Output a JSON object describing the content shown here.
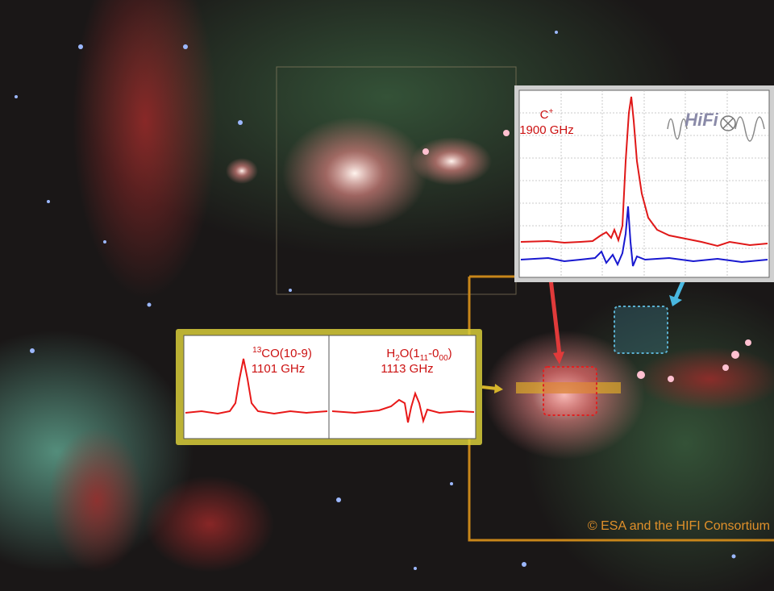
{
  "c_plus_label": {
    "base": "C",
    "sup": "+"
  },
  "c_plus_freq": "1900 GHz",
  "instrument_logo": "HiFi",
  "co_label": {
    "sup": "13",
    "base": "CO(10-9)"
  },
  "co_freq": "1101 GHz",
  "h2o_label": {
    "parts": [
      "H",
      "2",
      "O(1",
      "11",
      "-0",
      "00",
      ")"
    ]
  },
  "h2o_freq": "1113 GHz",
  "credit": "© ESA and the HIFI Consortium"
}
